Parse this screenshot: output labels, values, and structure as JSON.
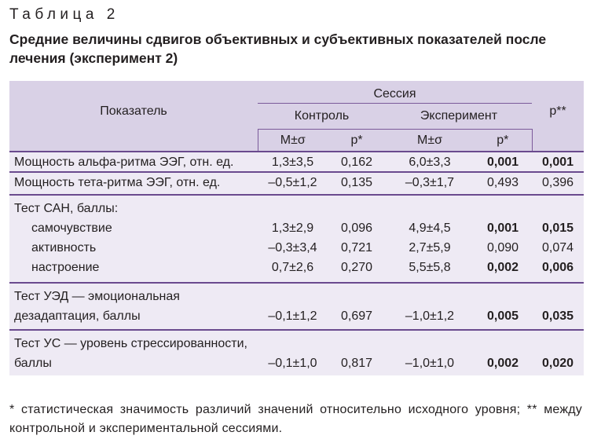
{
  "table_label": "Таблица 2",
  "title": "Средние величины сдвигов объективных и субъективных показателей после лечения (эксперимент 2)",
  "header": {
    "indicator": "Показатель",
    "session": "Сессия",
    "control": "Контроль",
    "experiment": "Эксперимент",
    "p2": "р**",
    "mean": "М±σ",
    "p1": "р*"
  },
  "rows": [
    {
      "label": "Мощность альфа-ритма ЭЭГ, отн. ед.",
      "c_m": "1,3±3,5",
      "c_p": "0,162",
      "e_m": "6,0±3,3",
      "e_p": "0,001",
      "p": "0,001"
    },
    {
      "label": "Мощность тета-ритма ЭЭГ, отн. ед.",
      "c_m": "–0,5±1,2",
      "c_p": "0,135",
      "e_m": "–0,3±1,7",
      "e_p": "0,493",
      "p": "0,396"
    },
    {
      "label": "Тест САН, баллы:"
    },
    {
      "label": "самочувствие",
      "c_m": "1,3±2,9",
      "c_p": "0,096",
      "e_m": "4,9±4,5",
      "e_p": "0,001",
      "p": "0,015"
    },
    {
      "label": "активность",
      "c_m": "–0,3±3,4",
      "c_p": "0,721",
      "e_m": "2,7±5,9",
      "e_p": "0,090",
      "p": "0,074"
    },
    {
      "label": "настроение",
      "c_m": "0,7±2,6",
      "c_p": "0,270",
      "e_m": "5,5±5,8",
      "e_p": "0,002",
      "p": "0,006"
    },
    {
      "label1": "Тест УЭД — эмоциональная",
      "label2": "дезадаптация, баллы",
      "c_m": "–0,1±1,2",
      "c_p": "0,697",
      "e_m": "–1,0±1,2",
      "e_p": "0,005",
      "p": "0,035"
    },
    {
      "label1": "Тест УС — уровень стрессированности,",
      "label2": "баллы",
      "c_m": "–0,1±1,0",
      "c_p": "0,817",
      "e_m": "–1,0±1,0",
      "e_p": "0,002",
      "p": "0,020"
    }
  ],
  "footnote": "* статистическая значимость различий значений относительно исходного уровня; ** между контрольной и экспериментальной сессиями."
}
